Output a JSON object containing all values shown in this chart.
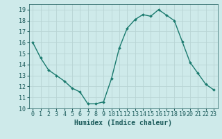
{
  "x": [
    0,
    1,
    2,
    3,
    4,
    5,
    6,
    7,
    8,
    9,
    10,
    11,
    12,
    13,
    14,
    15,
    16,
    17,
    18,
    19,
    20,
    21,
    22,
    23
  ],
  "y": [
    16.0,
    14.6,
    13.5,
    13.0,
    12.5,
    11.85,
    11.5,
    10.42,
    10.42,
    10.6,
    12.7,
    15.5,
    17.3,
    18.1,
    18.55,
    18.4,
    19.0,
    18.5,
    18.0,
    16.1,
    14.2,
    13.2,
    12.2,
    11.7
  ],
  "line_color": "#1a7a6e",
  "marker": "D",
  "marker_size": 2.0,
  "bg_color": "#ceeaea",
  "grid_color": "#b8d4d4",
  "xlabel": "Humidex (Indice chaleur)",
  "ylim": [
    10,
    19.5
  ],
  "xlim": [
    -0.5,
    23.5
  ],
  "yticks": [
    10,
    11,
    12,
    13,
    14,
    15,
    16,
    17,
    18,
    19
  ],
  "xticks": [
    0,
    1,
    2,
    3,
    4,
    5,
    6,
    7,
    8,
    9,
    10,
    11,
    12,
    13,
    14,
    15,
    16,
    17,
    18,
    19,
    20,
    21,
    22,
    23
  ],
  "xtick_labels": [
    "0",
    "1",
    "2",
    "3",
    "4",
    "5",
    "6",
    "7",
    "8",
    "9",
    "10",
    "11",
    "12",
    "13",
    "14",
    "15",
    "16",
    "17",
    "18",
    "19",
    "20",
    "21",
    "22",
    "23"
  ],
  "xlabel_fontsize": 7,
  "tick_fontsize": 6,
  "line_width": 1.0
}
